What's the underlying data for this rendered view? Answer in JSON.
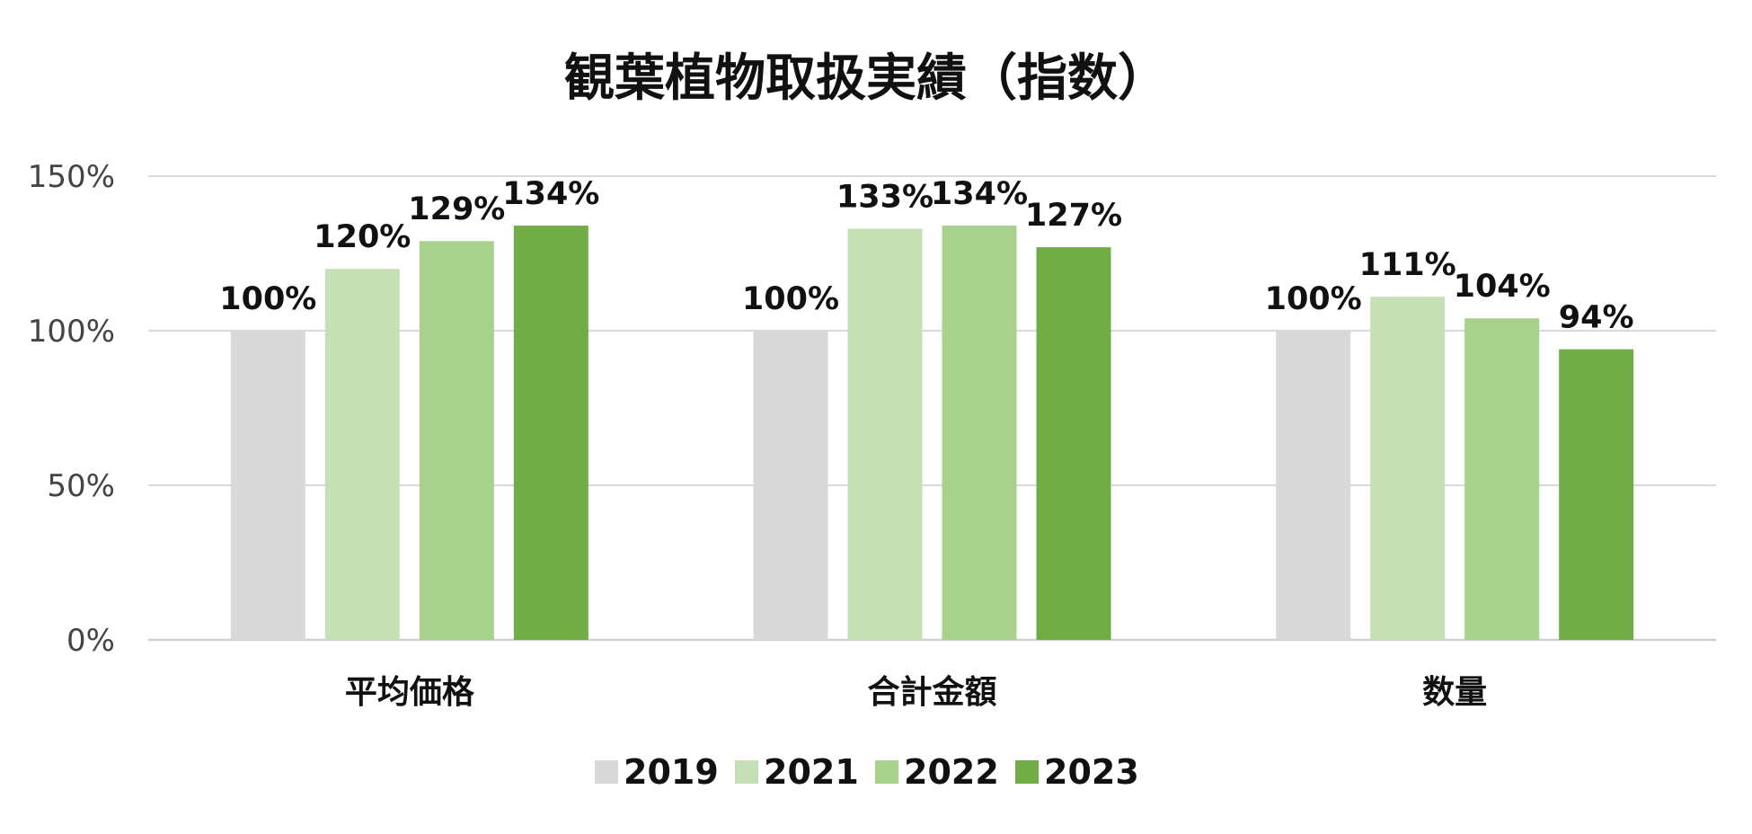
{
  "chart_data": {
    "type": "bar",
    "title": "観葉植物取扱実績（指数）",
    "categories": [
      "平均価格",
      "合計金額",
      "数量"
    ],
    "series": [
      {
        "name": "2019",
        "values": [
          100,
          100,
          100
        ],
        "color": "#d9d9d9"
      },
      {
        "name": "2021",
        "values": [
          120,
          133,
          111
        ],
        "color": "#c5e0b4"
      },
      {
        "name": "2022",
        "values": [
          129,
          134,
          104
        ],
        "color": "#a9d18e"
      },
      {
        "name": "2023",
        "values": [
          134,
          127,
          94
        ],
        "color": "#70ad47"
      }
    ],
    "ylim": [
      0,
      150
    ],
    "yticks": [
      "0%",
      "50%",
      "100%",
      "150%"
    ],
    "ytick_values": [
      0,
      50,
      100,
      150
    ],
    "value_suffix": "%",
    "grid": true,
    "legend_position": "bottom-center"
  }
}
